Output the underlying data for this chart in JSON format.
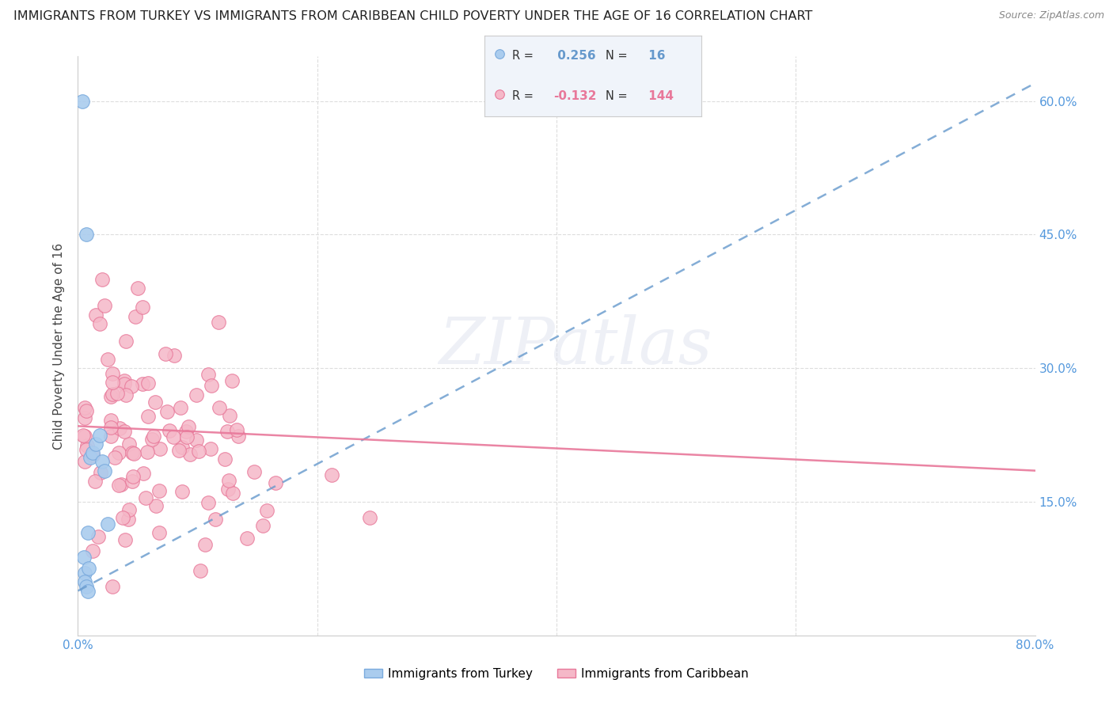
{
  "title": "IMMIGRANTS FROM TURKEY VS IMMIGRANTS FROM CARIBBEAN CHILD POVERTY UNDER THE AGE OF 16 CORRELATION CHART",
  "source": "Source: ZipAtlas.com",
  "ylabel": "Child Poverty Under the Age of 16",
  "xlim": [
    0.0,
    0.8
  ],
  "ylim": [
    0.0,
    0.65
  ],
  "ytick_vals": [
    0.0,
    0.15,
    0.3,
    0.45,
    0.6
  ],
  "ytick_labels": [
    "",
    "15.0%",
    "30.0%",
    "45.0%",
    "60.0%"
  ],
  "xtick_vals": [
    0.0,
    0.2,
    0.4,
    0.6,
    0.8
  ],
  "xtick_labels": [
    "0.0%",
    "",
    "",
    "",
    "80.0%"
  ],
  "turkey_color": "#aaccee",
  "turkey_edge_color": "#7aaadd",
  "caribbean_color": "#f5b8c8",
  "caribbean_edge_color": "#e8799a",
  "turkey_R": 0.256,
  "turkey_N": 16,
  "caribbean_R": -0.132,
  "caribbean_N": 144,
  "turkey_line_color": "#6699cc",
  "caribbean_line_color": "#e8789a",
  "watermark": "ZIPatlas",
  "legend_turkey_label": "Immigrants from Turkey",
  "legend_caribbean_label": "Immigrants from Caribbean",
  "turkey_x": [
    0.004,
    0.005,
    0.006,
    0.007,
    0.008,
    0.009,
    0.01,
    0.012,
    0.015,
    0.018,
    0.02,
    0.022,
    0.025,
    0.006,
    0.007,
    0.008
  ],
  "turkey_y": [
    0.6,
    0.088,
    0.07,
    0.45,
    0.115,
    0.075,
    0.2,
    0.205,
    0.215,
    0.225,
    0.195,
    0.185,
    0.125,
    0.06,
    0.055,
    0.05
  ],
  "turkey_line_x": [
    0.0,
    0.8
  ],
  "turkey_line_y": [
    0.05,
    0.62
  ],
  "caribbean_line_x": [
    0.0,
    0.8
  ],
  "caribbean_line_y": [
    0.235,
    0.185
  ],
  "grid_color": "#dddddd",
  "spine_color": "#cccccc",
  "tick_color": "#5599dd",
  "title_fontsize": 11.5,
  "tick_fontsize": 11,
  "ylabel_fontsize": 11
}
